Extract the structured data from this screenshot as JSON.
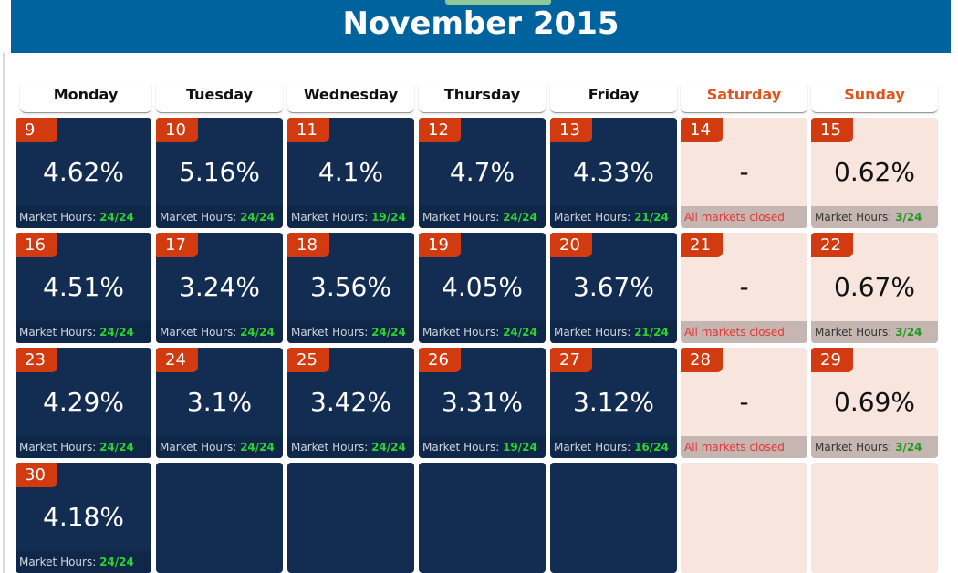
{
  "header": {
    "title": "November 2015"
  },
  "weekdays": [
    {
      "label": "Monday",
      "weekend": false
    },
    {
      "label": "Tuesday",
      "weekend": false
    },
    {
      "label": "Wednesday",
      "weekend": false
    },
    {
      "label": "Thursday",
      "weekend": false
    },
    {
      "label": "Friday",
      "weekend": false
    },
    {
      "label": "Saturday",
      "weekend": true
    },
    {
      "label": "Sunday",
      "weekend": true
    }
  ],
  "labels": {
    "market_hours": "Market Hours:",
    "closed": "All markets closed",
    "of_total": "/24"
  },
  "colors": {
    "header_bg": "#00639e",
    "weekday_cell": "#122c52",
    "weekend_cell": "#f8e5de",
    "day_badge": "#d23a10",
    "hours_green": "#2fd12f",
    "weekend_label": "#e0541f"
  },
  "weeks": [
    [
      {
        "day": "9",
        "value": "4.62%",
        "hours": "24",
        "link": false
      },
      {
        "day": "10",
        "value": "5.16%",
        "hours": "24",
        "link": false
      },
      {
        "day": "11",
        "value": "4.1%",
        "hours": "19",
        "link": true
      },
      {
        "day": "12",
        "value": "4.7%",
        "hours": "24",
        "link": false
      },
      {
        "day": "13",
        "value": "4.33%",
        "hours": "21",
        "link": true
      },
      {
        "day": "14",
        "value": "-",
        "closed": true
      },
      {
        "day": "15",
        "value": "0.62%",
        "hours": "3",
        "link": true
      }
    ],
    [
      {
        "day": "16",
        "value": "4.51%",
        "hours": "24",
        "link": false
      },
      {
        "day": "17",
        "value": "3.24%",
        "hours": "24",
        "link": false
      },
      {
        "day": "18",
        "value": "3.56%",
        "hours": "24",
        "link": false
      },
      {
        "day": "19",
        "value": "4.05%",
        "hours": "24",
        "link": false
      },
      {
        "day": "20",
        "value": "3.67%",
        "hours": "21",
        "link": true
      },
      {
        "day": "21",
        "value": "-",
        "closed": true
      },
      {
        "day": "22",
        "value": "0.67%",
        "hours": "3",
        "link": false
      }
    ],
    [
      {
        "day": "23",
        "value": "4.29%",
        "hours": "24",
        "link": false
      },
      {
        "day": "24",
        "value": "3.1%",
        "hours": "24",
        "link": false
      },
      {
        "day": "25",
        "value": "3.42%",
        "hours": "24",
        "link": false
      },
      {
        "day": "26",
        "value": "3.31%",
        "hours": "19",
        "link": true
      },
      {
        "day": "27",
        "value": "3.12%",
        "hours": "16",
        "link": true
      },
      {
        "day": "28",
        "value": "-",
        "closed": true
      },
      {
        "day": "29",
        "value": "0.69%",
        "hours": "3",
        "link": true
      }
    ],
    [
      {
        "day": "30",
        "value": "4.18%",
        "hours": "24",
        "link": false
      },
      {
        "empty": true
      },
      {
        "empty": true
      },
      {
        "empty": true
      },
      {
        "empty": true
      },
      {
        "empty": true
      },
      {
        "empty": true
      }
    ]
  ]
}
